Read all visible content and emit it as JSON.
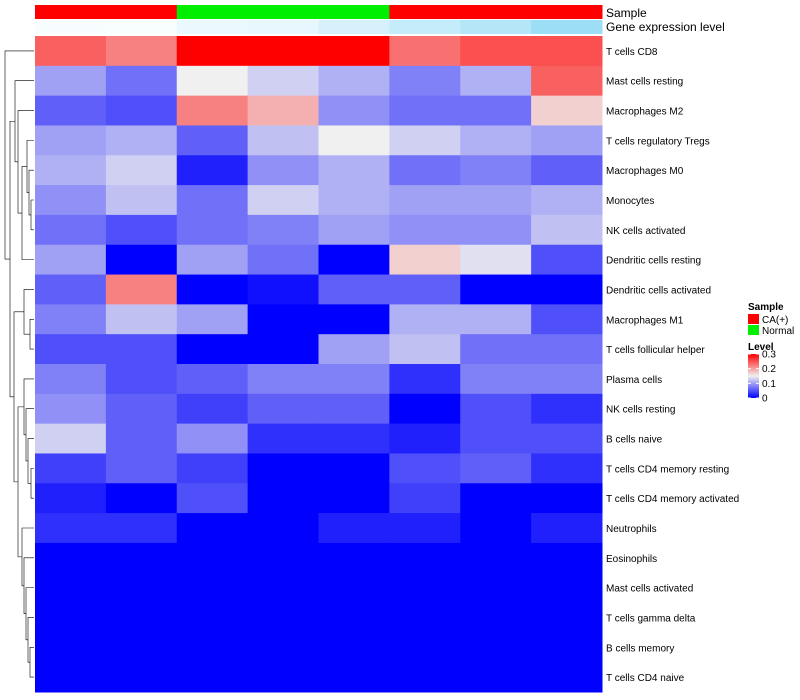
{
  "chart_data": {
    "type": "heatmap",
    "annotations": {
      "sample_title": "Sample",
      "expression_title": "Gene expression level",
      "sample_groups": [
        "CA(+)",
        "CA(+)",
        "Normal",
        "Normal",
        "Normal",
        "CA(+)",
        "CA(+)",
        "CA(+)"
      ],
      "expression_levels": [
        0.05,
        0.04,
        0.12,
        0.14,
        0.25,
        0.35,
        0.45,
        0.6
      ]
    },
    "rows": [
      "T cells CD8",
      "Mast cells resting",
      "Macrophages M2",
      "T cells regulatory  Tregs",
      "Macrophages M0",
      "Monocytes",
      "NK cells activated",
      "Dendritic cells resting",
      "Dendritic cells activated",
      "Macrophages M1",
      "T cells follicular helper",
      "Plasma cells",
      "NK cells resting",
      "B cells naive",
      "T cells CD4 memory resting",
      "T cells CD4 memory activated",
      "Neutrophils",
      "Eosinophils",
      "Mast cells activated",
      "T cells gamma delta",
      "B cells memory",
      "T cells CD4 naive"
    ],
    "values": [
      [
        0.24,
        0.22,
        0.3,
        0.3,
        0.3,
        0.23,
        0.25,
        0.25
      ],
      [
        0.1,
        0.07,
        0.15,
        0.13,
        0.11,
        0.08,
        0.11,
        0.24
      ],
      [
        0.06,
        0.05,
        0.22,
        0.19,
        0.09,
        0.07,
        0.07,
        0.17
      ],
      [
        0.1,
        0.11,
        0.06,
        0.12,
        0.15,
        0.13,
        0.11,
        0.1
      ],
      [
        0.11,
        0.13,
        0.02,
        0.09,
        0.11,
        0.07,
        0.08,
        0.06
      ],
      [
        0.09,
        0.12,
        0.07,
        0.13,
        0.11,
        0.1,
        0.1,
        0.11
      ],
      [
        0.07,
        0.05,
        0.07,
        0.08,
        0.1,
        0.09,
        0.09,
        0.12
      ],
      [
        0.1,
        0.0,
        0.1,
        0.07,
        0.0,
        0.17,
        0.14,
        0.05
      ],
      [
        0.06,
        0.22,
        0.0,
        0.01,
        0.06,
        0.06,
        0.0,
        0.0
      ],
      [
        0.08,
        0.12,
        0.1,
        0.0,
        0.0,
        0.11,
        0.11,
        0.05
      ],
      [
        0.05,
        0.05,
        0.0,
        0.0,
        0.1,
        0.12,
        0.07,
        0.07
      ],
      [
        0.08,
        0.05,
        0.06,
        0.08,
        0.08,
        0.03,
        0.08,
        0.08
      ],
      [
        0.09,
        0.06,
        0.04,
        0.06,
        0.06,
        0.0,
        0.05,
        0.03
      ],
      [
        0.13,
        0.06,
        0.09,
        0.03,
        0.03,
        0.02,
        0.05,
        0.05
      ],
      [
        0.04,
        0.06,
        0.04,
        0.0,
        0.0,
        0.05,
        0.06,
        0.03
      ],
      [
        0.02,
        0.0,
        0.05,
        0.0,
        0.0,
        0.04,
        0.0,
        0.0
      ],
      [
        0.03,
        0.03,
        0.0,
        0.0,
        0.02,
        0.02,
        0.0,
        0.02
      ],
      [
        0.0,
        0.0,
        0.0,
        0.0,
        0.0,
        0.0,
        0.0,
        0.0
      ],
      [
        0.0,
        0.0,
        0.0,
        0.0,
        0.0,
        0.0,
        0.0,
        0.0
      ],
      [
        0.0,
        0.0,
        0.0,
        0.0,
        0.0,
        0.0,
        0.0,
        0.0
      ],
      [
        0.0,
        0.0,
        0.0,
        0.0,
        0.0,
        0.0,
        0.0,
        0.0
      ],
      [
        0.0,
        0.0,
        0.0,
        0.0,
        0.0,
        0.0,
        0.0,
        0.0
      ]
    ],
    "color_scale": {
      "min": 0,
      "mid": 0.15,
      "max": 0.3,
      "low_color": "#0000ff",
      "mid_color": "#f0f0f0",
      "high_color": "#ff0000"
    },
    "legend": {
      "sample": {
        "title": "Sample",
        "entries": [
          {
            "label": "CA(+)",
            "color": "#ff0000"
          },
          {
            "label": "Normal",
            "color": "#00ee00"
          }
        ]
      },
      "level": {
        "title": "Level",
        "ticks": [
          0,
          0.1,
          0.2,
          0.3
        ],
        "tick_labels": [
          "0",
          "0.1",
          "0.2",
          "0.3"
        ]
      },
      "placement": "right"
    },
    "expression_colors": {
      "low": "#ffffff",
      "high": "#5ac8f0"
    },
    "dendrogram": "left"
  }
}
